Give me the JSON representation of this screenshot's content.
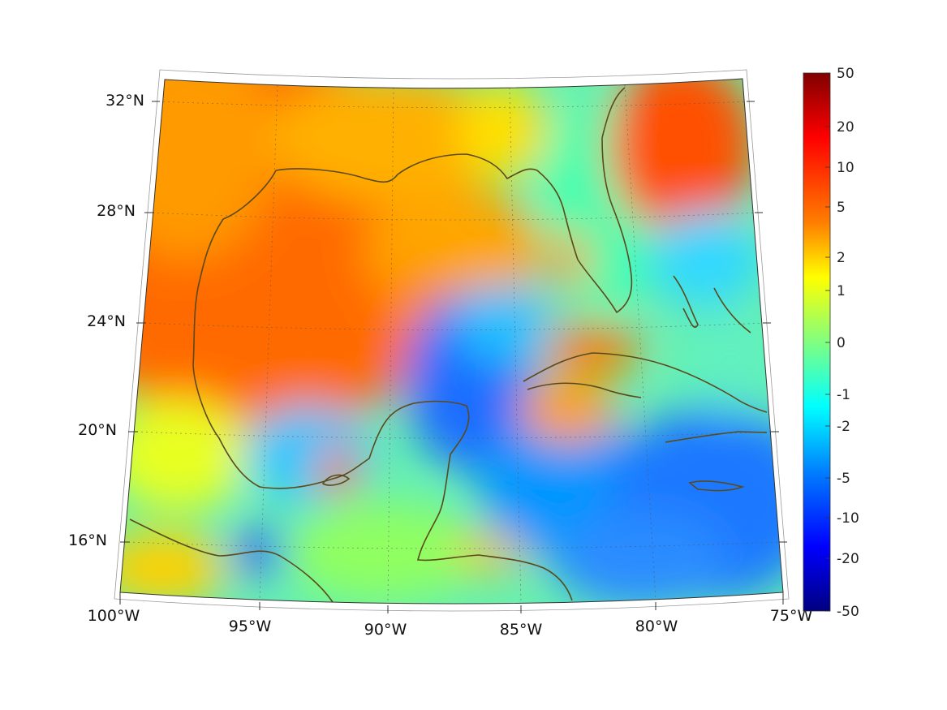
{
  "map": {
    "region": "Gulf of Mexico and Caribbean",
    "projection": "conic",
    "lon_range": [
      -100,
      -75
    ],
    "lat_range": [
      14,
      33
    ],
    "coastline_color": "#5a4a1c",
    "gridlines": true,
    "longitude_labels": [
      "100°W",
      "95°W",
      "90°W",
      "85°W",
      "80°W",
      "75°W"
    ],
    "latitude_labels": [
      "32°N",
      "28°N",
      "24°N",
      "20°N",
      "16°N"
    ],
    "colormap": "jet"
  },
  "colorbar": {
    "scale": "symmetric-log",
    "range": [
      -50,
      50
    ],
    "labels": [
      "50",
      "20",
      "10",
      "5",
      "2",
      "1",
      "0",
      "-1",
      "-2",
      "-5",
      "-10",
      "-20",
      "-50"
    ]
  }
}
